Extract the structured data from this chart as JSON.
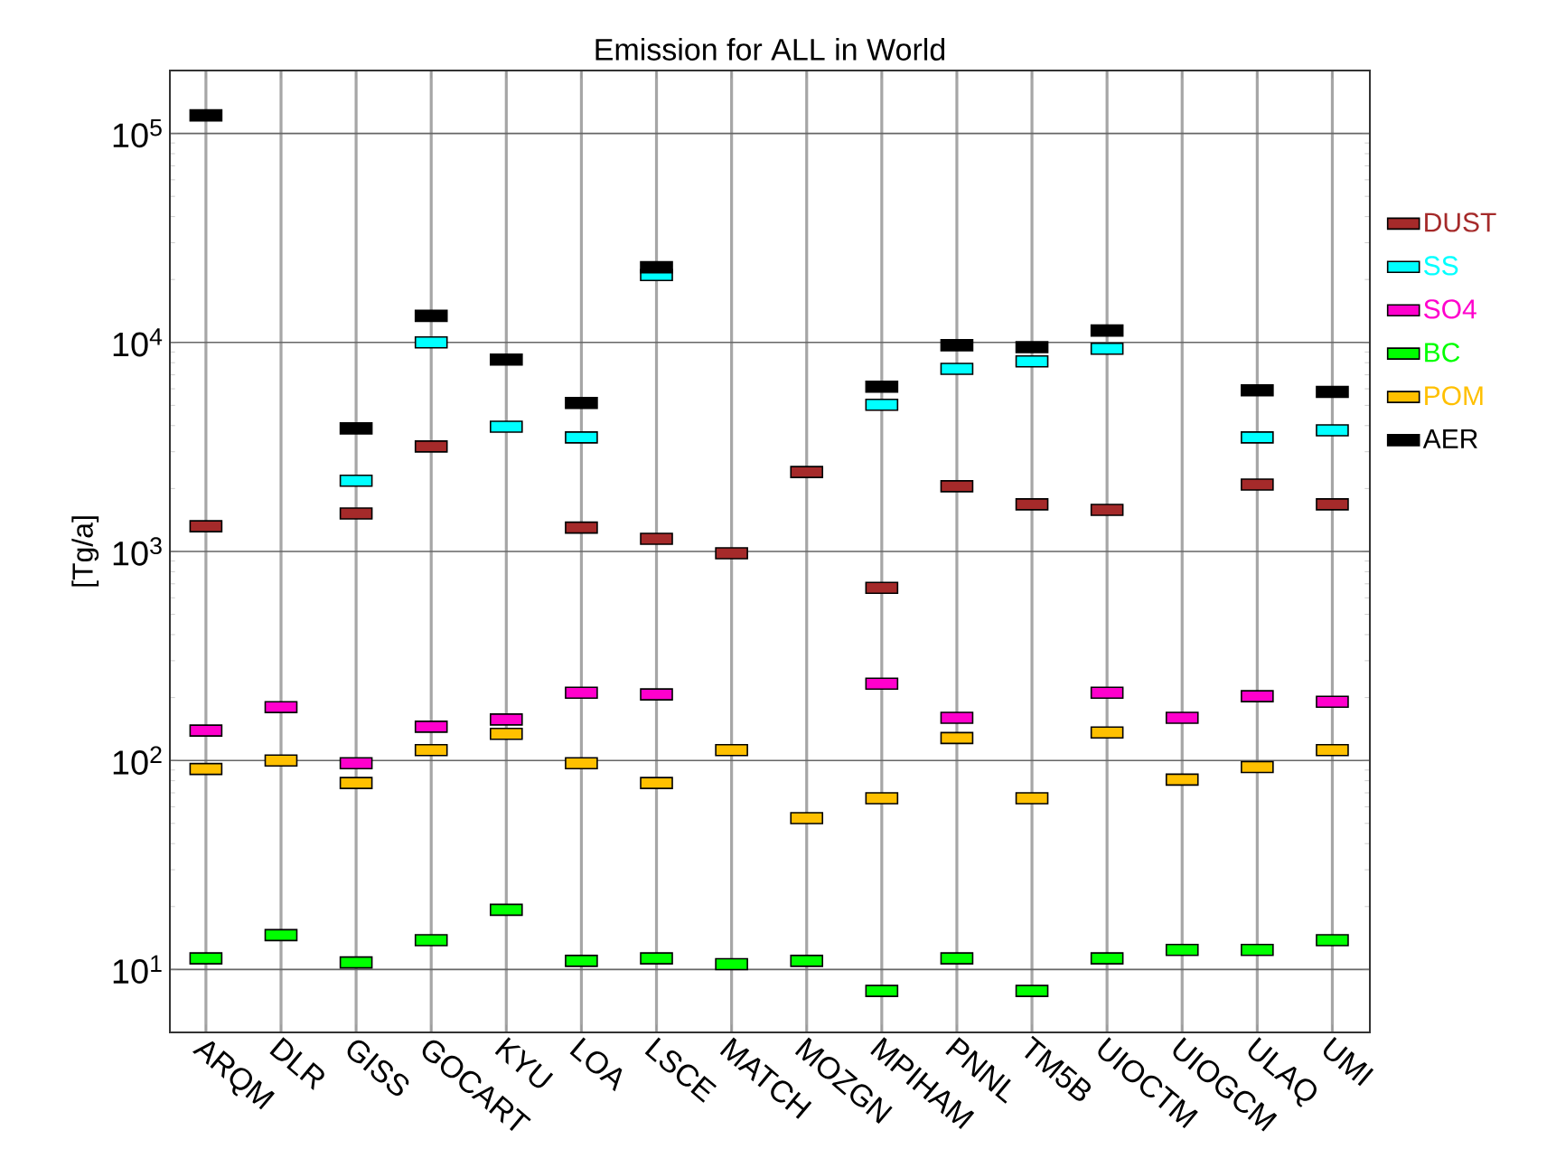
{
  "chart_data": {
    "type": "scatter",
    "title": "Emission for ALL in World",
    "ylabel": "[Tg/a]",
    "categories": [
      "ARQM",
      "DLR",
      "GISS",
      "GOCART",
      "KYU",
      "LOA",
      "LSCE",
      "MATCH",
      "MOZGN",
      "MPIHAM",
      "PNNL",
      "TM5B",
      "UIOCTM",
      "UIOGCM",
      "ULAQ",
      "UMI"
    ],
    "series": [
      {
        "name": "DUST",
        "color": "#a52a2a",
        "values": [
          1320,
          null,
          1520,
          3180,
          null,
          1300,
          1150,
          980,
          2400,
          670,
          2050,
          1680,
          1580,
          null,
          2090,
          1680
        ]
      },
      {
        "name": "SS",
        "color": "#00ffff",
        "values": [
          null,
          null,
          2180,
          10000,
          3950,
          3510,
          21000,
          null,
          null,
          5030,
          7480,
          8110,
          9330,
          null,
          3510,
          3800
        ]
      },
      {
        "name": "SO4",
        "color": "#ff00cc",
        "values": [
          139,
          180,
          97,
          145,
          157,
          211,
          207,
          null,
          null,
          233,
          160,
          null,
          211,
          160,
          203,
          191
        ]
      },
      {
        "name": "BC",
        "color": "#00ff00",
        "values": [
          11.3,
          14.6,
          10.8,
          13.8,
          19.3,
          11,
          11.3,
          10.6,
          11,
          7.9,
          11.3,
          7.9,
          11.3,
          12.4,
          12.4,
          13.8
        ]
      },
      {
        "name": "POM",
        "color": "#ffc000",
        "values": [
          91,
          100,
          78,
          112,
          134,
          97,
          78,
          112,
          53,
          66,
          128,
          66,
          136,
          81,
          93,
          112
        ]
      },
      {
        "name": "AER",
        "color": "#000000",
        "values": [
          122000,
          null,
          3880,
          13400,
          8280,
          5130,
          22900,
          null,
          null,
          6140,
          9700,
          9500,
          11400,
          null,
          5900,
          5800
        ]
      }
    ],
    "log": "y",
    "ylim": [
      5,
      200000
    ],
    "yticks": [
      {
        "value": 10,
        "label": "10$^{1}$"
      },
      {
        "value": 100,
        "label": "10$^{2}$"
      },
      {
        "value": 1000,
        "label": "10$^{3}$"
      },
      {
        "value": 10000,
        "label": "10$^{4}$"
      },
      {
        "value": 100000,
        "label": "10$^{5}$"
      }
    ],
    "grid": true,
    "legend": "right",
    "marker": "square"
  }
}
